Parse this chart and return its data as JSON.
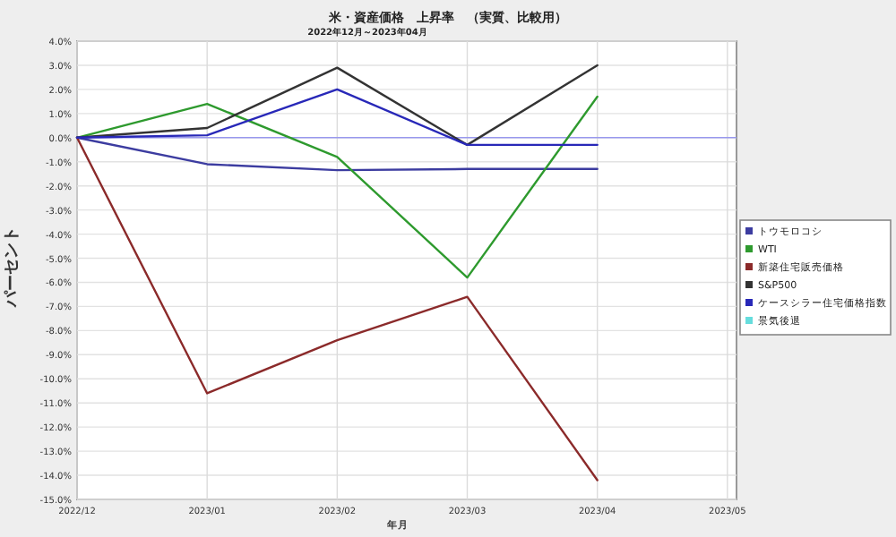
{
  "chart_data": {
    "type": "line",
    "title": "米・資産価格　上昇率　（実質、比較用）",
    "subtitle": "2022年12月～2023年04月",
    "xlabel": "年月",
    "ylabel": "パーセント",
    "categories": [
      "2022/12",
      "2023/01",
      "2023/02",
      "2023/03",
      "2023/04",
      "2023/05"
    ],
    "series": [
      {
        "name": "トウモロコシ",
        "color": "#3c3ca0",
        "values": [
          0,
          -1.1,
          -1.35,
          -1.3,
          -1.3,
          null
        ]
      },
      {
        "name": "WTI",
        "color": "#2e9a2e",
        "values": [
          0,
          1.4,
          -0.8,
          -5.8,
          1.7,
          null
        ]
      },
      {
        "name": "新築住宅販売価格",
        "color": "#8b2a2a",
        "values": [
          0,
          -10.6,
          -8.4,
          -6.6,
          -14.2,
          null
        ]
      },
      {
        "name": "S&P500",
        "color": "#333333",
        "values": [
          0,
          0.4,
          2.9,
          -0.3,
          3.0,
          null
        ]
      },
      {
        "name": "ケースシラー住宅価格指数",
        "color": "#2828b8",
        "values": [
          0,
          0.1,
          2.0,
          -0.3,
          -0.3,
          null
        ]
      },
      {
        "name": "景気後退",
        "color": "#66dddd",
        "values": [
          null,
          null,
          null,
          null,
          null,
          null
        ]
      }
    ],
    "ylim": [
      -15,
      4
    ],
    "yticks": [
      {
        "value": 4,
        "label": "4.0%"
      },
      {
        "value": 3,
        "label": "3.0%"
      },
      {
        "value": 2,
        "label": "2.0%"
      },
      {
        "value": 1,
        "label": "1.0%"
      },
      {
        "value": 0,
        "label": "0.0%"
      },
      {
        "value": -1,
        "label": "-1.0%"
      },
      {
        "value": -2,
        "label": "-2.0%"
      },
      {
        "value": -3,
        "label": "-3.0%"
      },
      {
        "value": -4,
        "label": "-4.0%"
      },
      {
        "value": -5,
        "label": "-5.0%"
      },
      {
        "value": -6,
        "label": "-6.0%"
      },
      {
        "value": -7,
        "label": "-7.0%"
      },
      {
        "value": -8,
        "label": "-8.0%"
      },
      {
        "value": -9,
        "label": "-9.0%"
      },
      {
        "value": -10,
        "label": "-10.0%"
      },
      {
        "value": -11,
        "label": "-11.0%"
      },
      {
        "value": -12,
        "label": "-12.0%"
      },
      {
        "value": -13,
        "label": "-13.0%"
      },
      {
        "value": -14,
        "label": "-14.0%"
      },
      {
        "value": -15,
        "label": "-15.0%"
      }
    ],
    "ref_lines": [
      {
        "axis": "y",
        "value": 0,
        "color": "#9999ee"
      }
    ],
    "grid": true,
    "legend": "right",
    "marker": "none",
    "line_style": "solid"
  }
}
